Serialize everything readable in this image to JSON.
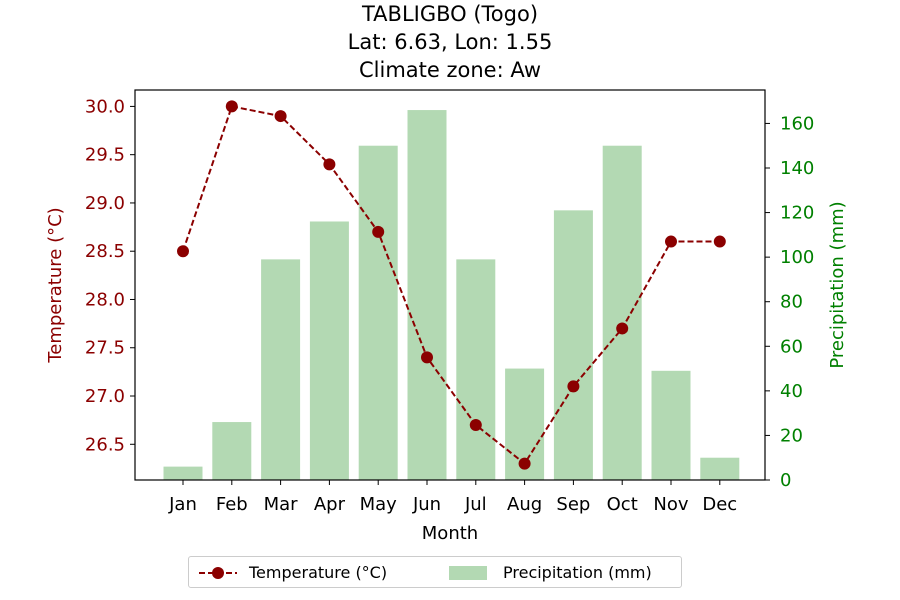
{
  "chart_data": {
    "type": "bar+line",
    "title_lines": [
      "TABLIGBO (Togo)",
      "Lat: 6.63, Lon: 1.55",
      "Climate zone: Aw"
    ],
    "xlabel": "Month",
    "categories": [
      "Jan",
      "Feb",
      "Mar",
      "Apr",
      "May",
      "Jun",
      "Jul",
      "Aug",
      "Sep",
      "Oct",
      "Nov",
      "Dec"
    ],
    "temperature": {
      "name": "Temperature (°C)",
      "axis_label": "Temperature (°C)",
      "values": [
        28.5,
        30.0,
        29.9,
        29.4,
        28.7,
        27.4,
        26.7,
        26.3,
        27.1,
        27.7,
        28.6,
        28.6
      ],
      "ylim": [
        26.13,
        30.17
      ],
      "ticks": [
        "26.5",
        "27.0",
        "27.5",
        "28.0",
        "28.5",
        "29.0",
        "29.5",
        "30.0"
      ],
      "color": "#8b0000"
    },
    "precipitation": {
      "name": "Precipitation (mm)",
      "axis_label": "Precipitation (mm)",
      "values": [
        6,
        26,
        99,
        116,
        150,
        166,
        99,
        50,
        121,
        150,
        49,
        10
      ],
      "ylim": [
        0,
        175
      ],
      "ticks": [
        "0",
        "20",
        "40",
        "60",
        "80",
        "100",
        "120",
        "140",
        "160"
      ],
      "color": "#008000",
      "bar_color": "#b3d9b3"
    },
    "legend": {
      "placement": "bottom-center",
      "entries": [
        "Temperature (°C)",
        "Precipitation (mm)"
      ]
    }
  }
}
